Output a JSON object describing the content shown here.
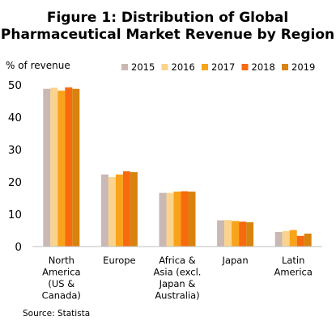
{
  "chart_data": {
    "type": "bar",
    "title": [
      "Figure 1: Distribution of Global",
      "Pharmaceutical Market Revenue by Region"
    ],
    "ylabel": "% of revenue",
    "ylim": [
      0,
      50
    ],
    "yticks": [
      "0",
      "10",
      "20",
      "30",
      "40",
      "50"
    ],
    "grid": false,
    "legend_position": "top-right",
    "categories": [
      [
        "North",
        "America",
        "(US &",
        "Canada)"
      ],
      [
        "Europe"
      ],
      [
        "Africa &",
        "Asia (excl.",
        "Japan &",
        "Australia)"
      ],
      [
        "Japan"
      ],
      [
        "Latin",
        "America"
      ]
    ],
    "series": [
      {
        "name": "2015",
        "color": "#c9b8b3",
        "values": [
          48.8,
          22.3,
          16.6,
          8.1,
          4.5
        ]
      },
      {
        "name": "2016",
        "color": "#fbd38d",
        "values": [
          49.1,
          21.5,
          16.6,
          8.2,
          4.8
        ]
      },
      {
        "name": "2017",
        "color": "#f9a31a",
        "values": [
          48.2,
          22.3,
          17.0,
          7.9,
          5.1
        ]
      },
      {
        "name": "2018",
        "color": "#f76a0f",
        "values": [
          49.2,
          23.3,
          17.1,
          7.7,
          3.3
        ]
      },
      {
        "name": "2019",
        "color": "#d9830f",
        "values": [
          48.8,
          23.0,
          17.0,
          7.5,
          4.0
        ]
      }
    ],
    "source": "Source: Statista"
  }
}
